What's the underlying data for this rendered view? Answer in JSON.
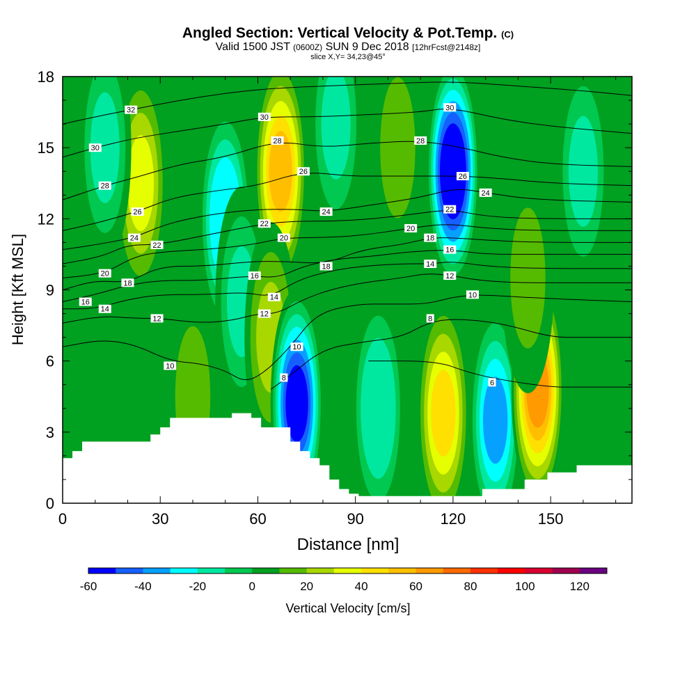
{
  "titles": {
    "main": "Angled Section: Vertical Velocity & Pot.Temp.",
    "main_unit": "(C)",
    "valid_prefix": "Valid 1500 JST",
    "valid_utc": "(0600Z)",
    "valid_date": "SUN 9 Dec 2018",
    "forecast": "[12hrFcst@2148z]",
    "slice": "slice X,Y= 34,23@45°"
  },
  "chart_data": {
    "type": "heatmap",
    "xlabel": "Distance [nm]",
    "ylabel": "Height [Kft MSL]",
    "xlim": [
      0,
      175
    ],
    "ylim": [
      0,
      18
    ],
    "xticks": [
      0,
      30,
      60,
      90,
      120,
      150
    ],
    "yticks": [
      0,
      3,
      6,
      9,
      12,
      15,
      18
    ],
    "colorbar": {
      "label": "Vertical Velocity [cm/s]",
      "ticks": [
        -60,
        -40,
        -20,
        0,
        20,
        40,
        60,
        80,
        100,
        120
      ],
      "range": [
        -60,
        130
      ],
      "step": 10,
      "colors": [
        "#0000ff",
        "#1560ff",
        "#06a0ff",
        "#00ffff",
        "#00e8a0",
        "#00c850",
        "#00a020",
        "#55bb00",
        "#a8d800",
        "#e6ff00",
        "#ffe000",
        "#ffbf00",
        "#ff9a00",
        "#ff6a00",
        "#ff3000",
        "#ff0000",
        "#d80030",
        "#a00050",
        "#6a0080"
      ]
    },
    "vertical_velocity_cells": [
      {
        "x": 40,
        "z": 4.5,
        "value": 10
      },
      {
        "x": 24,
        "z": 14,
        "value": 20
      },
      {
        "x": 24,
        "z": 13.5,
        "value": 30
      },
      {
        "x": 50,
        "z": 12,
        "value": -30
      },
      {
        "x": 55,
        "z": 8.5,
        "value": -15
      },
      {
        "x": 67,
        "z": 14,
        "value": 50
      },
      {
        "x": 64,
        "z": 7,
        "value": 22
      },
      {
        "x": 72,
        "z": 4.2,
        "value": -55
      },
      {
        "x": 97,
        "z": 4,
        "value": -20
      },
      {
        "x": 103,
        "z": 15,
        "value": 15
      },
      {
        "x": 84,
        "z": 16,
        "value": -15
      },
      {
        "x": 120,
        "z": 14,
        "value": -60
      },
      {
        "x": 117,
        "z": 3.8,
        "value": 45
      },
      {
        "x": 133,
        "z": 3.5,
        "value": -35
      },
      {
        "x": 146,
        "z": 4.8,
        "value": 60
      },
      {
        "x": 143,
        "z": 9.5,
        "value": 15
      },
      {
        "x": 160,
        "z": 14,
        "value": -15
      },
      {
        "x": 13,
        "z": 15,
        "value": -15
      }
    ],
    "potential_temperature_labels": [
      {
        "text": "32",
        "x": 21,
        "z": 16.6
      },
      {
        "text": "30",
        "x": 10,
        "z": 15.0
      },
      {
        "text": "28",
        "x": 13,
        "z": 13.4
      },
      {
        "text": "26",
        "x": 23,
        "z": 12.3
      },
      {
        "text": "24",
        "x": 22,
        "z": 11.2
      },
      {
        "text": "22",
        "x": 29,
        "z": 10.9
      },
      {
        "text": "20",
        "x": 13,
        "z": 9.7
      },
      {
        "text": "18",
        "x": 20,
        "z": 9.3
      },
      {
        "text": "16",
        "x": 7,
        "z": 8.5
      },
      {
        "text": "14",
        "x": 13,
        "z": 8.2
      },
      {
        "text": "12",
        "x": 29,
        "z": 7.8
      },
      {
        "text": "10",
        "x": 33,
        "z": 5.8
      },
      {
        "text": "30",
        "x": 62,
        "z": 16.3
      },
      {
        "text": "28",
        "x": 66,
        "z": 15.3
      },
      {
        "text": "26",
        "x": 74,
        "z": 14.0
      },
      {
        "text": "22",
        "x": 62,
        "z": 11.8
      },
      {
        "text": "20",
        "x": 68,
        "z": 11.2
      },
      {
        "text": "16",
        "x": 59,
        "z": 9.6
      },
      {
        "text": "14",
        "x": 65,
        "z": 8.7
      },
      {
        "text": "12",
        "x": 62,
        "z": 8.0
      },
      {
        "text": "10",
        "x": 72,
        "z": 6.6
      },
      {
        "text": "8",
        "x": 68,
        "z": 5.3
      },
      {
        "text": "24",
        "x": 81,
        "z": 12.3
      },
      {
        "text": "18",
        "x": 81,
        "z": 10.0
      },
      {
        "text": "28",
        "x": 110,
        "z": 15.3
      },
      {
        "text": "30",
        "x": 119,
        "z": 16.7
      },
      {
        "text": "26",
        "x": 123,
        "z": 13.8
      },
      {
        "text": "24",
        "x": 130,
        "z": 13.1
      },
      {
        "text": "22",
        "x": 119,
        "z": 12.4
      },
      {
        "text": "20",
        "x": 107,
        "z": 11.6
      },
      {
        "text": "18",
        "x": 113,
        "z": 11.2
      },
      {
        "text": "16",
        "x": 119,
        "z": 10.7
      },
      {
        "text": "14",
        "x": 113,
        "z": 10.1
      },
      {
        "text": "12",
        "x": 119,
        "z": 9.6
      },
      {
        "text": "10",
        "x": 126,
        "z": 8.8
      },
      {
        "text": "8",
        "x": 113,
        "z": 7.8
      },
      {
        "text": "6",
        "x": 132,
        "z": 5.1
      }
    ],
    "potential_temperature_isentropes": [
      {
        "level": 6,
        "points": [
          [
            94,
            6
          ],
          [
            115,
            6
          ],
          [
            125,
            5.5
          ],
          [
            135,
            5.2
          ],
          [
            150,
            4.9
          ],
          [
            158,
            4.9
          ],
          [
            175,
            4.9
          ]
        ]
      },
      {
        "level": 8,
        "points": [
          [
            64,
            4.8
          ],
          [
            70,
            5.4
          ],
          [
            80,
            6.5
          ],
          [
            92,
            6.8
          ],
          [
            104,
            7.0
          ],
          [
            112,
            7.6
          ],
          [
            120,
            7.8
          ],
          [
            135,
            7.6
          ],
          [
            150,
            7.0
          ],
          [
            160,
            7.0
          ],
          [
            175,
            7.0
          ]
        ]
      },
      {
        "level": 10,
        "points": [
          [
            0,
            6.6
          ],
          [
            12,
            6.9
          ],
          [
            22,
            6.7
          ],
          [
            33,
            6.0
          ],
          [
            42,
            5.9
          ],
          [
            50,
            5.6
          ],
          [
            56,
            5.1
          ],
          [
            62,
            5.5
          ],
          [
            70,
            6.6
          ],
          [
            78,
            8.0
          ],
          [
            90,
            8.4
          ],
          [
            102,
            8.4
          ],
          [
            112,
            8.4
          ],
          [
            120,
            8.7
          ],
          [
            128,
            8.8
          ],
          [
            140,
            8.7
          ],
          [
            155,
            8.6
          ],
          [
            175,
            8.5
          ]
        ]
      },
      {
        "level": 12,
        "points": [
          [
            0,
            7.6
          ],
          [
            12,
            7.9
          ],
          [
            22,
            7.8
          ],
          [
            30,
            7.8
          ],
          [
            42,
            7.6
          ],
          [
            52,
            7.7
          ],
          [
            60,
            8.0
          ],
          [
            66,
            8.0
          ],
          [
            74,
            8.6
          ],
          [
            82,
            9.0
          ],
          [
            92,
            9.3
          ],
          [
            104,
            9.5
          ],
          [
            112,
            9.7
          ],
          [
            120,
            9.6
          ],
          [
            128,
            9.4
          ],
          [
            140,
            9.3
          ],
          [
            155,
            9.3
          ],
          [
            175,
            9.3
          ]
        ]
      },
      {
        "level": 14,
        "points": [
          [
            0,
            8.2
          ],
          [
            10,
            8.2
          ],
          [
            20,
            8.6
          ],
          [
            30,
            8.8
          ],
          [
            44,
            8.8
          ],
          [
            56,
            8.9
          ],
          [
            64,
            8.7
          ],
          [
            72,
            9.4
          ],
          [
            82,
            9.8
          ],
          [
            92,
            10.0
          ],
          [
            104,
            10.1
          ],
          [
            113,
            10.1
          ],
          [
            120,
            10.2
          ],
          [
            130,
            10.0
          ],
          [
            145,
            9.9
          ],
          [
            175,
            9.9
          ]
        ]
      },
      {
        "level": 16,
        "points": [
          [
            0,
            8.5
          ],
          [
            10,
            8.8
          ],
          [
            20,
            9.2
          ],
          [
            30,
            9.4
          ],
          [
            44,
            9.4
          ],
          [
            58,
            9.6
          ],
          [
            66,
            9.5
          ],
          [
            74,
            10.0
          ],
          [
            84,
            10.3
          ],
          [
            94,
            10.4
          ],
          [
            106,
            10.6
          ],
          [
            119,
            10.7
          ],
          [
            130,
            10.5
          ],
          [
            145,
            10.5
          ],
          [
            175,
            10.5
          ]
        ]
      },
      {
        "level": 18,
        "points": [
          [
            0,
            9.0
          ],
          [
            10,
            9.4
          ],
          [
            20,
            9.3
          ],
          [
            30,
            10.0
          ],
          [
            44,
            10.0
          ],
          [
            58,
            10.2
          ],
          [
            68,
            10.2
          ],
          [
            81,
            10.1
          ],
          [
            92,
            10.7
          ],
          [
            104,
            10.9
          ],
          [
            113,
            11.2
          ],
          [
            120,
            11.2
          ],
          [
            130,
            11.1
          ],
          [
            145,
            11.0
          ],
          [
            175,
            11.0
          ]
        ]
      },
      {
        "level": 20,
        "points": [
          [
            0,
            9.5
          ],
          [
            13,
            9.7
          ],
          [
            22,
            10.4
          ],
          [
            30,
            10.6
          ],
          [
            44,
            10.7
          ],
          [
            58,
            10.9
          ],
          [
            68,
            11.2
          ],
          [
            80,
            11.2
          ],
          [
            92,
            11.3
          ],
          [
            107,
            11.6
          ],
          [
            118,
            11.8
          ],
          [
            130,
            11.6
          ],
          [
            145,
            11.5
          ],
          [
            175,
            11.5
          ]
        ]
      },
      {
        "level": 22,
        "points": [
          [
            0,
            10.1
          ],
          [
            12,
            10.4
          ],
          [
            20,
            10.9
          ],
          [
            29,
            10.9
          ],
          [
            44,
            11.3
          ],
          [
            62,
            11.8
          ],
          [
            72,
            11.9
          ],
          [
            84,
            11.9
          ],
          [
            96,
            12.0
          ],
          [
            108,
            12.2
          ],
          [
            119,
            12.4
          ],
          [
            130,
            12.1
          ],
          [
            145,
            12.0
          ],
          [
            175,
            12.0
          ]
        ]
      },
      {
        "level": 24,
        "points": [
          [
            0,
            10.7
          ],
          [
            10,
            10.9
          ],
          [
            22,
            11.2
          ],
          [
            32,
            11.8
          ],
          [
            46,
            12.2
          ],
          [
            60,
            12.4
          ],
          [
            72,
            12.4
          ],
          [
            81,
            12.3
          ],
          [
            96,
            12.6
          ],
          [
            110,
            12.9
          ],
          [
            121,
            13.3
          ],
          [
            130,
            13.1
          ],
          [
            145,
            12.8
          ],
          [
            175,
            12.7
          ]
        ]
      },
      {
        "level": 26,
        "points": [
          [
            0,
            11.5
          ],
          [
            10,
            11.8
          ],
          [
            23,
            12.3
          ],
          [
            34,
            12.9
          ],
          [
            48,
            13.2
          ],
          [
            60,
            13.4
          ],
          [
            74,
            14.0
          ],
          [
            88,
            13.8
          ],
          [
            100,
            13.8
          ],
          [
            112,
            13.8
          ],
          [
            123,
            13.8
          ],
          [
            135,
            13.7
          ],
          [
            150,
            13.5
          ],
          [
            175,
            13.4
          ]
        ]
      },
      {
        "level": 28,
        "points": [
          [
            0,
            12.8
          ],
          [
            13,
            13.4
          ],
          [
            24,
            13.8
          ],
          [
            36,
            14.3
          ],
          [
            50,
            14.6
          ],
          [
            66,
            15.3
          ],
          [
            80,
            15.0
          ],
          [
            95,
            15.2
          ],
          [
            110,
            15.3
          ],
          [
            123,
            15.0
          ],
          [
            135,
            14.6
          ],
          [
            150,
            14.3
          ],
          [
            175,
            14.2
          ]
        ]
      },
      {
        "level": 30,
        "points": [
          [
            0,
            14.6
          ],
          [
            10,
            15.0
          ],
          [
            22,
            15.4
          ],
          [
            36,
            15.7
          ],
          [
            50,
            16.0
          ],
          [
            62,
            16.3
          ],
          [
            78,
            16.3
          ],
          [
            95,
            16.4
          ],
          [
            110,
            16.5
          ],
          [
            119,
            16.7
          ],
          [
            135,
            16.2
          ],
          [
            150,
            15.9
          ],
          [
            175,
            15.6
          ]
        ]
      },
      {
        "level": 32,
        "points": [
          [
            0,
            16.0
          ],
          [
            10,
            16.3
          ],
          [
            21,
            16.6
          ],
          [
            36,
            17.0
          ],
          [
            50,
            17.3
          ],
          [
            64,
            17.5
          ],
          [
            80,
            17.6
          ],
          [
            100,
            17.7
          ],
          [
            120,
            17.8
          ],
          [
            140,
            17.6
          ],
          [
            160,
            17.4
          ],
          [
            175,
            17.2
          ]
        ]
      }
    ],
    "terrain_top": [
      [
        0,
        1.9
      ],
      [
        3,
        1.9
      ],
      [
        3,
        2.2
      ],
      [
        6,
        2.2
      ],
      [
        6,
        2.6
      ],
      [
        27,
        2.6
      ],
      [
        27,
        2.9
      ],
      [
        30,
        2.9
      ],
      [
        30,
        3.2
      ],
      [
        33,
        3.2
      ],
      [
        33,
        3.6
      ],
      [
        52,
        3.6
      ],
      [
        52,
        3.8
      ],
      [
        58,
        3.8
      ],
      [
        58,
        3.6
      ],
      [
        61,
        3.6
      ],
      [
        61,
        3.2
      ],
      [
        70,
        3.2
      ],
      [
        70,
        2.6
      ],
      [
        73,
        2.6
      ],
      [
        73,
        2.2
      ],
      [
        76,
        2.2
      ],
      [
        76,
        1.9
      ],
      [
        79,
        1.9
      ],
      [
        79,
        1.6
      ],
      [
        82,
        1.6
      ],
      [
        82,
        1.0
      ],
      [
        85,
        1.0
      ],
      [
        85,
        0.6
      ],
      [
        88,
        0.6
      ],
      [
        88,
        0.4
      ],
      [
        91,
        0.4
      ],
      [
        91,
        0.3
      ],
      [
        129,
        0.3
      ],
      [
        129,
        0.6
      ],
      [
        142,
        0.6
      ],
      [
        142,
        1.0
      ],
      [
        149,
        1.0
      ],
      [
        149,
        1.3
      ],
      [
        158,
        1.3
      ],
      [
        158,
        1.6
      ],
      [
        175,
        1.6
      ]
    ]
  }
}
